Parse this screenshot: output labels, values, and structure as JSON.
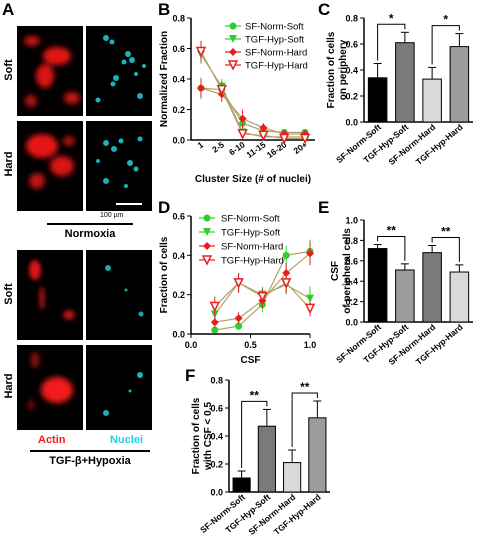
{
  "panels": {
    "A": "A",
    "B": "B",
    "C": "C",
    "D": "D",
    "E": "E",
    "F": "F"
  },
  "micrograph": {
    "row_labels": [
      "Soft",
      "Hard",
      "Soft",
      "Hard"
    ],
    "scale_bar": "100 µm",
    "condition_top": "Normoxia",
    "condition_bottom": "TGF-β+Hypoxia",
    "channel_actin": "Actin",
    "channel_nuclei": "Nuclei",
    "colors": {
      "actin": "#ff1a1a",
      "nuclei": "#1ed3e0",
      "background": "#000000"
    }
  },
  "chart_data": [
    {
      "id": "B",
      "type": "line",
      "categories": [
        "1",
        "2-5",
        "6-10",
        "11-15",
        "16-20",
        "20+"
      ],
      "ylabel": "Normalized Fraction",
      "xlabel": "Cluster Size (# of nuclei)",
      "ylim": [
        0,
        0.8
      ],
      "yticks": [
        "0.0",
        "0.2",
        "0.4",
        "0.6",
        "0.8"
      ],
      "legend_position": "top-right",
      "series": [
        {
          "name": "SF-Norm-Soft",
          "color": "#2bd12b",
          "marker": "circle",
          "values": [
            0.34,
            0.33,
            0.11,
            0.06,
            0.05,
            0.05
          ],
          "err": [
            0.07,
            0.05,
            0.05,
            0.02,
            0.02,
            0.02
          ]
        },
        {
          "name": "TGF-Hyp-Soft",
          "color": "#2bd12b",
          "marker": "tri-down",
          "values": [
            0.56,
            0.35,
            0.05,
            0.02,
            0.02,
            0.02
          ],
          "err": [
            0.06,
            0.05,
            0.03,
            0.01,
            0.01,
            0.01
          ]
        },
        {
          "name": "SF-Norm-Hard",
          "color": "#e81e1e",
          "marker": "diamond",
          "values": [
            0.34,
            0.3,
            0.14,
            0.08,
            0.04,
            0.04
          ],
          "err": [
            0.06,
            0.05,
            0.06,
            0.03,
            0.02,
            0.02
          ]
        },
        {
          "name": "TGF-Hyp-Hard",
          "color": "#e81e1e",
          "marker": "tri-down-open",
          "values": [
            0.58,
            0.33,
            0.04,
            0.03,
            0.01,
            0.01
          ],
          "err": [
            0.07,
            0.05,
            0.03,
            0.02,
            0.01,
            0.01
          ]
        }
      ]
    },
    {
      "id": "C",
      "type": "bar",
      "categories": [
        "SF-Norm-Soft",
        "TGF-Hyp-Soft",
        "SF-Norm-Hard",
        "TGF-Hyp-Hard"
      ],
      "values": [
        0.34,
        0.61,
        0.33,
        0.58
      ],
      "err": [
        0.11,
        0.08,
        0.09,
        0.1
      ],
      "colors": [
        "#000000",
        "#7a7a7a",
        "#d9d9d9",
        "#9c9c9c"
      ],
      "ylabel": "Fraction of cells on periphery",
      "ylim": [
        0,
        0.8
      ],
      "yticks": [
        "0.0",
        "0.2",
        "0.4",
        "0.6",
        "0.8"
      ],
      "significance": [
        "*",
        "*"
      ]
    },
    {
      "id": "D",
      "type": "line",
      "x": [
        0.2,
        0.4,
        0.6,
        0.8,
        1.0
      ],
      "xticks": [
        "0.0",
        "0.5",
        "1.0"
      ],
      "xlabel": "CSF",
      "ylabel": "Fraction of cells",
      "xlim": [
        0,
        1
      ],
      "ylim": [
        0,
        0.6
      ],
      "yticks": [
        "0.0",
        "0.2",
        "0.4",
        "0.6"
      ],
      "legend_position": "top-left",
      "series": [
        {
          "name": "SF-Norm-Soft",
          "color": "#2bd12b",
          "marker": "circle",
          "values": [
            0.02,
            0.04,
            0.15,
            0.4,
            0.42
          ],
          "err": [
            0.01,
            0.02,
            0.04,
            0.05,
            0.06
          ]
        },
        {
          "name": "TGF-Hyp-Soft",
          "color": "#2bd12b",
          "marker": "tri-down",
          "values": [
            0.1,
            0.26,
            0.2,
            0.25,
            0.18
          ],
          "err": [
            0.04,
            0.05,
            0.04,
            0.05,
            0.06
          ]
        },
        {
          "name": "SF-Norm-Hard",
          "color": "#e81e1e",
          "marker": "diamond",
          "values": [
            0.06,
            0.08,
            0.17,
            0.31,
            0.41
          ],
          "err": [
            0.03,
            0.03,
            0.04,
            0.05,
            0.06
          ]
        },
        {
          "name": "TGF-Hyp-Hard",
          "color": "#e81e1e",
          "marker": "tri-down-open",
          "values": [
            0.14,
            0.26,
            0.19,
            0.26,
            0.13
          ],
          "err": [
            0.05,
            0.05,
            0.04,
            0.05,
            0.04
          ]
        }
      ]
    },
    {
      "id": "E",
      "type": "bar",
      "categories": [
        "SF-Norm-Soft",
        "TGF-Hyp-Soft",
        "SF-Norm-Hard",
        "TGF-Hyp-Hard"
      ],
      "values": [
        0.72,
        0.51,
        0.68,
        0.49
      ],
      "err": [
        0.04,
        0.06,
        0.07,
        0.07
      ],
      "colors": [
        "#000000",
        "#9c9c9c",
        "#7a7a7a",
        "#d9d9d9"
      ],
      "ylabel": "CSF of peripheral cells",
      "ylim": [
        0,
        1.0
      ],
      "yticks": [
        "0.0",
        "0.2",
        "0.4",
        "0.6",
        "0.8",
        "1.0"
      ],
      "significance": [
        "**",
        "**"
      ]
    },
    {
      "id": "F",
      "type": "bar",
      "categories": [
        "SF-Norm-Soft",
        "TGF-Hyp-Soft",
        "SF-Norm-Hard",
        "TGF-Hyp-Hard"
      ],
      "values": [
        0.1,
        0.47,
        0.21,
        0.53
      ],
      "err": [
        0.05,
        0.12,
        0.09,
        0.12
      ],
      "colors": [
        "#000000",
        "#7a7a7a",
        "#d9d9d9",
        "#9c9c9c"
      ],
      "ylabel": "Fraction of cells with CSF < 0.5",
      "ylim": [
        0,
        0.8
      ],
      "yticks": [
        "0.0",
        "0.2",
        "0.4",
        "0.6",
        "0.8"
      ],
      "significance": [
        "**",
        "**"
      ]
    }
  ]
}
